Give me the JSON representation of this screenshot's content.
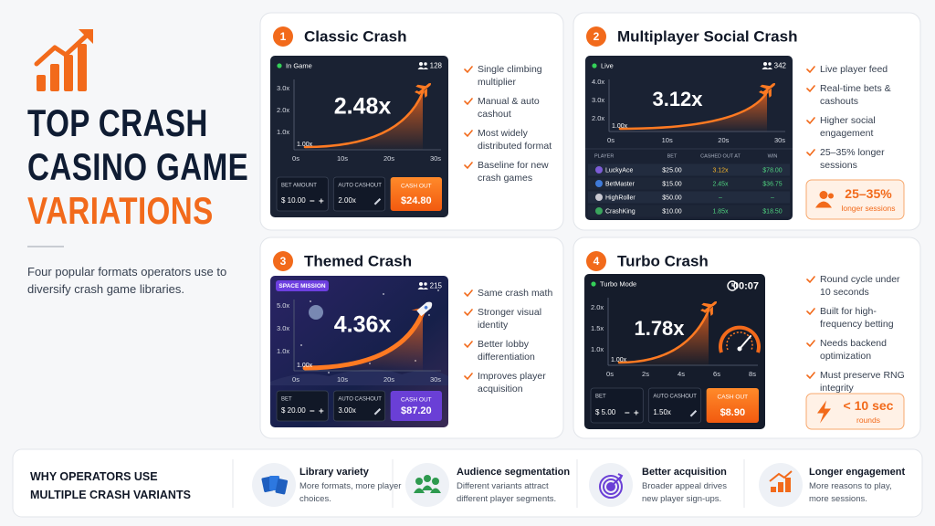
{
  "header": {
    "title": [
      "TOP CRASH",
      "CASINO GAME",
      "VARIATIONS"
    ],
    "description": "Four popular formats operators use to diversify crash game libraries."
  },
  "cards": [
    {
      "number": "1",
      "title": "Classic Crash",
      "game": {
        "status": "In Game",
        "players": "128",
        "y_labels": [
          "3.0x",
          "2.0x",
          "1.0x"
        ],
        "x_labels": [
          "0s",
          "10s",
          "20s",
          "30s"
        ],
        "start": "1.00x",
        "multiplier": "2.48x",
        "controls": [
          {
            "label": "BET AMOUNT",
            "value": "$ 10.00"
          },
          {
            "label": "AUTO CASHOUT",
            "value": "2.00x"
          }
        ],
        "cashout": {
          "label": "CASH OUT",
          "value": "$24.80"
        }
      },
      "bullets": [
        "Single climbing multiplier",
        "Manual & auto cashout",
        "Most widely distributed format",
        "Baseline for new crash games"
      ]
    },
    {
      "number": "2",
      "title": "Multiplayer Social Crash",
      "game": {
        "status": "Live",
        "players": "342",
        "y_labels": [
          "4.0x",
          "3.0x",
          "2.0x"
        ],
        "x_labels": [
          "0s",
          "10s",
          "20s",
          "30s"
        ],
        "start": "1.00x",
        "multiplier": "3.12x",
        "columns": [
          "PLAYER",
          "BET",
          "CASHED OUT AT",
          "WIN"
        ],
        "rows": [
          [
            "LuckyAce",
            "$25.00",
            "3.12x",
            "$78.00"
          ],
          [
            "BetMaster",
            "$15.00",
            "2.45x",
            "$36.75"
          ],
          [
            "HighRoller",
            "$50.00",
            "–",
            "–"
          ],
          [
            "CrashKing",
            "$10.00",
            "1.85x",
            "$18.50"
          ]
        ]
      },
      "bullets": [
        "Live player feed",
        "Real-time bets & cashouts",
        "Higher social engagement",
        "25–35% longer sessions"
      ],
      "stat": {
        "value": "25–35%",
        "label": "longer sessions"
      }
    },
    {
      "number": "3",
      "title": "Themed Crash",
      "game": {
        "status": "SPACE MISSION",
        "players": "215",
        "y_labels": [
          "5.0x",
          "3.0x",
          "1.0x"
        ],
        "x_labels": [
          "0s",
          "10s",
          "20s",
          "30s"
        ],
        "start": "1.00x",
        "multiplier": "4.36x",
        "controls": [
          {
            "label": "BET",
            "value": "$ 20.00"
          },
          {
            "label": "AUTO CASHOUT",
            "value": "3.00x"
          }
        ],
        "cashout": {
          "label": "CASH OUT",
          "value": "$87.20"
        }
      },
      "bullets": [
        "Same crash math",
        "Stronger visual identity",
        "Better lobby differentiation",
        "Improves player acquisition"
      ]
    },
    {
      "number": "4",
      "title": "Turbo Crash",
      "game": {
        "status": "Turbo Mode",
        "timer": "00:07",
        "y_labels": [
          "2.0x",
          "1.5x",
          "1.0x"
        ],
        "x_labels": [
          "0s",
          "2s",
          "4s",
          "6s",
          "8s"
        ],
        "start": "1.00x",
        "multiplier": "1.78x",
        "controls": [
          {
            "label": "BET",
            "value": "$ 5.00"
          },
          {
            "label": "AUTO CASHOUT",
            "value": "1.50x"
          }
        ],
        "cashout": {
          "label": "CASH OUT",
          "value": "$8.90"
        }
      },
      "bullets": [
        "Round cycle under 10 seconds",
        "Built for high-frequency betting",
        "Needs backend optimization",
        "Must preserve RNG integrity"
      ],
      "stat": {
        "value": "< 10 sec",
        "label": "rounds"
      }
    }
  ],
  "footer": {
    "title": [
      "WHY OPERATORS USE",
      "MULTIPLE CRASH VARIANTS"
    ],
    "items": [
      {
        "title": "Library variety",
        "text": "More formats, more player choices."
      },
      {
        "title": "Audience segmentation",
        "text": "Different variants attract different player segments."
      },
      {
        "title": "Better acquisition",
        "text": "Broader appeal drives new player sign-ups."
      },
      {
        "title": "Longer engagement",
        "text": "More reasons to play, more sessions."
      }
    ]
  }
}
